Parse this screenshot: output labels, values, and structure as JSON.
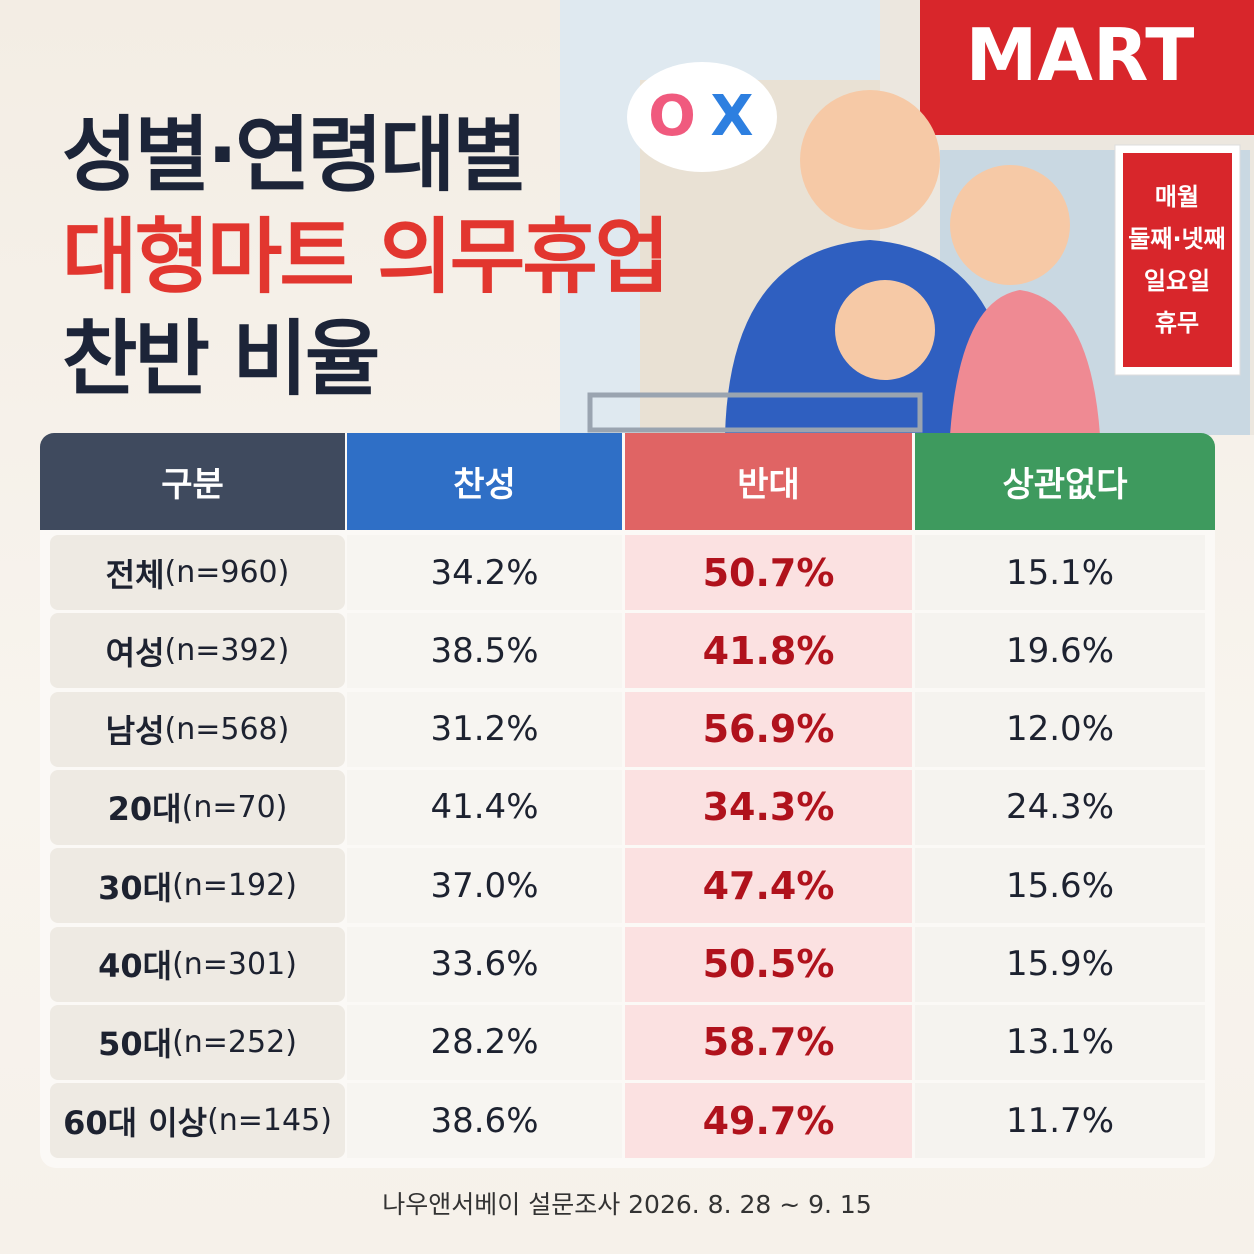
{
  "header": {
    "title_lines": [
      "성별·연령대별",
      "대형마트 의무휴업",
      "찬반 비율"
    ]
  },
  "illustration": {
    "store_sign": "MART",
    "bubble": [
      "O",
      "X"
    ],
    "notice": [
      "매월",
      "둘째·넷째",
      "일요일",
      "휴무"
    ]
  },
  "table": {
    "columns": [
      "구분",
      "찬성",
      "반대",
      "상관없다"
    ],
    "rows": [
      [
        [
          "전체",
          "(n=960)"
        ],
        "34.2%",
        "50.7%",
        "15.1%"
      ],
      [
        [
          "여성",
          "(n=392)"
        ],
        "38.5%",
        "41.8%",
        "19.6%"
      ],
      [
        [
          "남성",
          "(n=568)"
        ],
        "31.2%",
        "56.9%",
        "12.0%"
      ],
      [
        [
          "20대",
          "(n=70)"
        ],
        "41.4%",
        "34.3%",
        "24.3%"
      ],
      [
        [
          "30대",
          "(n=192)"
        ],
        "37.0%",
        "47.4%",
        "15.6%"
      ],
      [
        [
          "40대",
          "(n=301)"
        ],
        "33.6%",
        "50.5%",
        "15.9%"
      ],
      [
        [
          "50대",
          "(n=252)"
        ],
        "28.2%",
        "58.7%",
        "13.1%"
      ],
      [
        [
          "60대 이상",
          "(n=145)"
        ],
        "38.6%",
        "49.7%",
        "11.7%"
      ]
    ]
  },
  "footer": {
    "source": "나우앤서베이 설문조사 2026. 8. 28 ~ 9. 15"
  }
}
